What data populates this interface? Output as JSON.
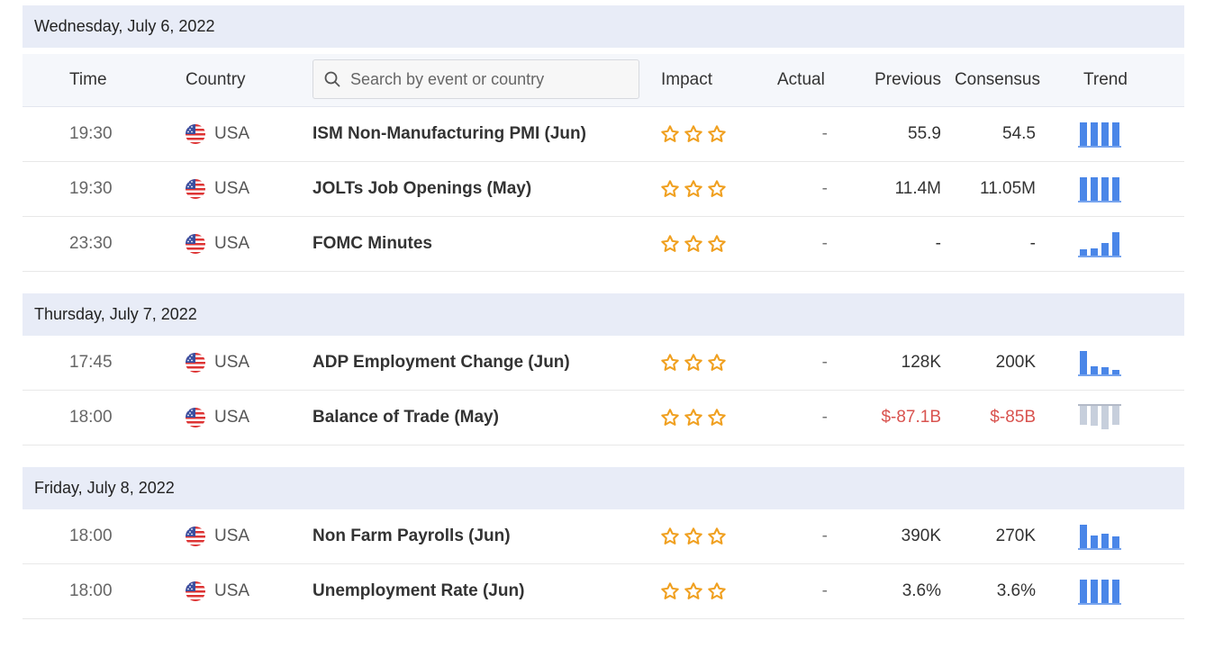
{
  "search": {
    "placeholder": "Search by event or country"
  },
  "columns": {
    "time": "Time",
    "country": "Country",
    "impact": "Impact",
    "actual": "Actual",
    "previous": "Previous",
    "consensus": "Consensus",
    "trend": "Trend"
  },
  "colors": {
    "star": "#f0a020",
    "bar": "#4a86e8",
    "bar_faded": "#c7cfdc",
    "negative": "#d9534f"
  },
  "days": [
    {
      "date": "Wednesday, July 6, 2022",
      "events": [
        {
          "time": "19:30",
          "country": "USA",
          "event": "ISM Non-Manufacturing PMI (Jun)",
          "impact_stars": 3,
          "actual": "-",
          "previous": "55.9",
          "consensus": "54.5",
          "trend": [
            1.0,
            1.0,
            1.0,
            1.0
          ],
          "trend_faded": false
        },
        {
          "time": "19:30",
          "country": "USA",
          "event": "JOLTs Job Openings (May)",
          "impact_stars": 3,
          "actual": "-",
          "previous": "11.4M",
          "consensus": "11.05M",
          "trend": [
            1.0,
            1.0,
            1.0,
            1.0
          ],
          "trend_faded": false
        },
        {
          "time": "23:30",
          "country": "USA",
          "event": "FOMC Minutes",
          "impact_stars": 3,
          "actual": "-",
          "previous": "-",
          "consensus": "-",
          "trend": [
            0.25,
            0.3,
            0.55,
            1.0
          ],
          "trend_faded": false
        }
      ]
    },
    {
      "date": "Thursday, July 7, 2022",
      "events": [
        {
          "time": "17:45",
          "country": "USA",
          "event": "ADP Employment Change (Jun)",
          "impact_stars": 3,
          "actual": "-",
          "previous": "128K",
          "consensus": "200K",
          "trend": [
            1.0,
            0.35,
            0.3,
            0.2
          ],
          "trend_faded": false
        },
        {
          "time": "18:00",
          "country": "USA",
          "event": "Balance of Trade (May)",
          "impact_stars": 3,
          "actual": "-",
          "previous": "$-87.1B",
          "consensus": "$-85B",
          "negative": true,
          "trend": [
            0.8,
            0.85,
            1.0,
            0.8
          ],
          "trend_faded": true
        }
      ]
    },
    {
      "date": "Friday, July 8, 2022",
      "events": [
        {
          "time": "18:00",
          "country": "USA",
          "event": "Non Farm Payrolls (Jun)",
          "impact_stars": 3,
          "actual": "-",
          "previous": "390K",
          "consensus": "270K",
          "trend": [
            1.0,
            0.55,
            0.6,
            0.5
          ],
          "trend_faded": false
        },
        {
          "time": "18:00",
          "country": "USA",
          "event": "Unemployment Rate (Jun)",
          "impact_stars": 3,
          "actual": "-",
          "previous": "3.6%",
          "consensus": "3.6%",
          "trend": [
            1.0,
            1.0,
            1.0,
            1.0
          ],
          "trend_faded": false
        }
      ]
    }
  ]
}
